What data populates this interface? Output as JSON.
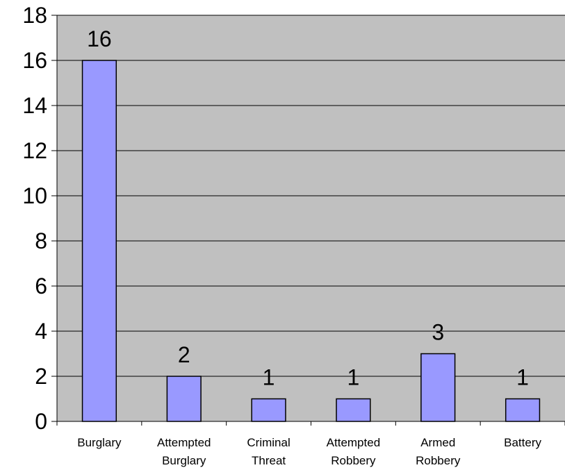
{
  "chart_data": {
    "type": "bar",
    "categories": [
      "Burglary",
      "Attempted Burglary",
      "Criminal Threat",
      "Attempted Robbery",
      "Armed Robbery",
      "Battery"
    ],
    "category_lines": [
      [
        "Burglary"
      ],
      [
        "Attempted",
        "Burglary"
      ],
      [
        "Criminal",
        "Threat"
      ],
      [
        "Attempted",
        "Robbery"
      ],
      [
        "Armed",
        "Robbery"
      ],
      [
        "Battery"
      ]
    ],
    "values": [
      16,
      2,
      1,
      1,
      3,
      1
    ],
    "data_labels": [
      "16",
      "2",
      "1",
      "1",
      "3",
      "1"
    ],
    "title": "",
    "xlabel": "",
    "ylabel": "",
    "ylim": [
      0,
      18
    ],
    "yticks": [
      0,
      2,
      4,
      6,
      8,
      10,
      12,
      14,
      16,
      18
    ],
    "grid": true,
    "legend": "none",
    "colors": {
      "plot_background": "#c0c0c0",
      "bar_fill": "#9999ff",
      "bar_stroke": "#000000",
      "grid": "#000000"
    }
  }
}
